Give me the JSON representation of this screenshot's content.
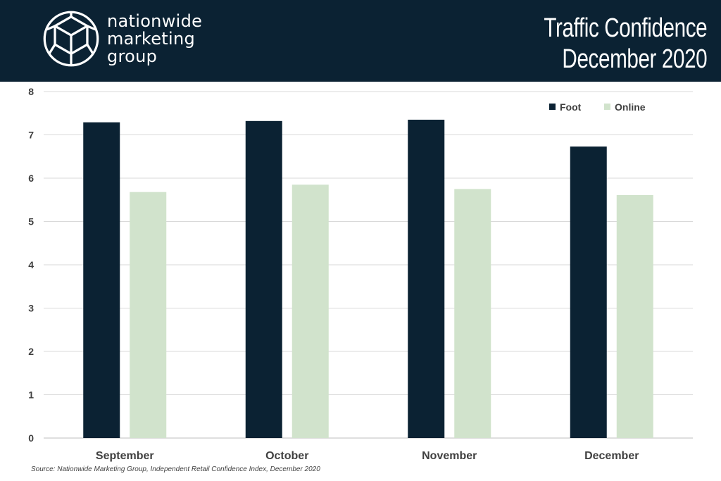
{
  "header": {
    "brand_lines": [
      "nationwide",
      "marketing",
      "group"
    ],
    "title_lines": [
      "Traffic Confidence",
      "December 2020"
    ],
    "logo_icon": "geometric-sphere-logo-icon"
  },
  "colors": {
    "header_bg": "#0b2233",
    "foot": "#0b2233",
    "online": "#d1e3cc",
    "grid": "#d9d9d9"
  },
  "chart_data": {
    "type": "bar",
    "categories": [
      "September",
      "October",
      "November",
      "December"
    ],
    "series": [
      {
        "name": "Foot",
        "values": [
          7.29,
          7.32,
          7.35,
          6.73
        ]
      },
      {
        "name": "Online",
        "values": [
          5.68,
          5.85,
          5.75,
          5.61
        ]
      }
    ],
    "ylim": [
      0,
      8
    ],
    "yticks": [
      "0",
      "1",
      "2",
      "3",
      "4",
      "5",
      "6",
      "7",
      "8"
    ],
    "grid": true,
    "legend": "top-right"
  },
  "source": "Source: Nationwide Marketing Group, Independent Retail Confidence Index, December 2020"
}
